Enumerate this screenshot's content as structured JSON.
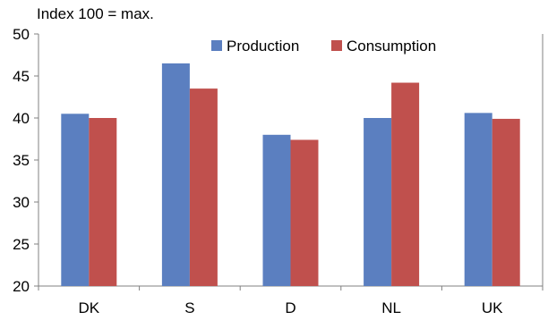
{
  "chart_data": {
    "type": "bar",
    "title": "",
    "subtitle": "Index 100 = max.",
    "xlabel": "",
    "ylabel": "",
    "ylim": [
      20,
      50
    ],
    "yticks": [
      20,
      25,
      30,
      35,
      40,
      45,
      50
    ],
    "categories": [
      "DK",
      "S",
      "D",
      "NL",
      "UK"
    ],
    "series": [
      {
        "name": "Production",
        "color": "#5B7FC0",
        "values": [
          40.5,
          46.5,
          38.0,
          40.0,
          40.6
        ]
      },
      {
        "name": "Consumption",
        "color": "#C0504D",
        "values": [
          40.0,
          43.5,
          37.4,
          44.2,
          39.9
        ]
      }
    ],
    "legend_position": "top",
    "grid": false
  }
}
